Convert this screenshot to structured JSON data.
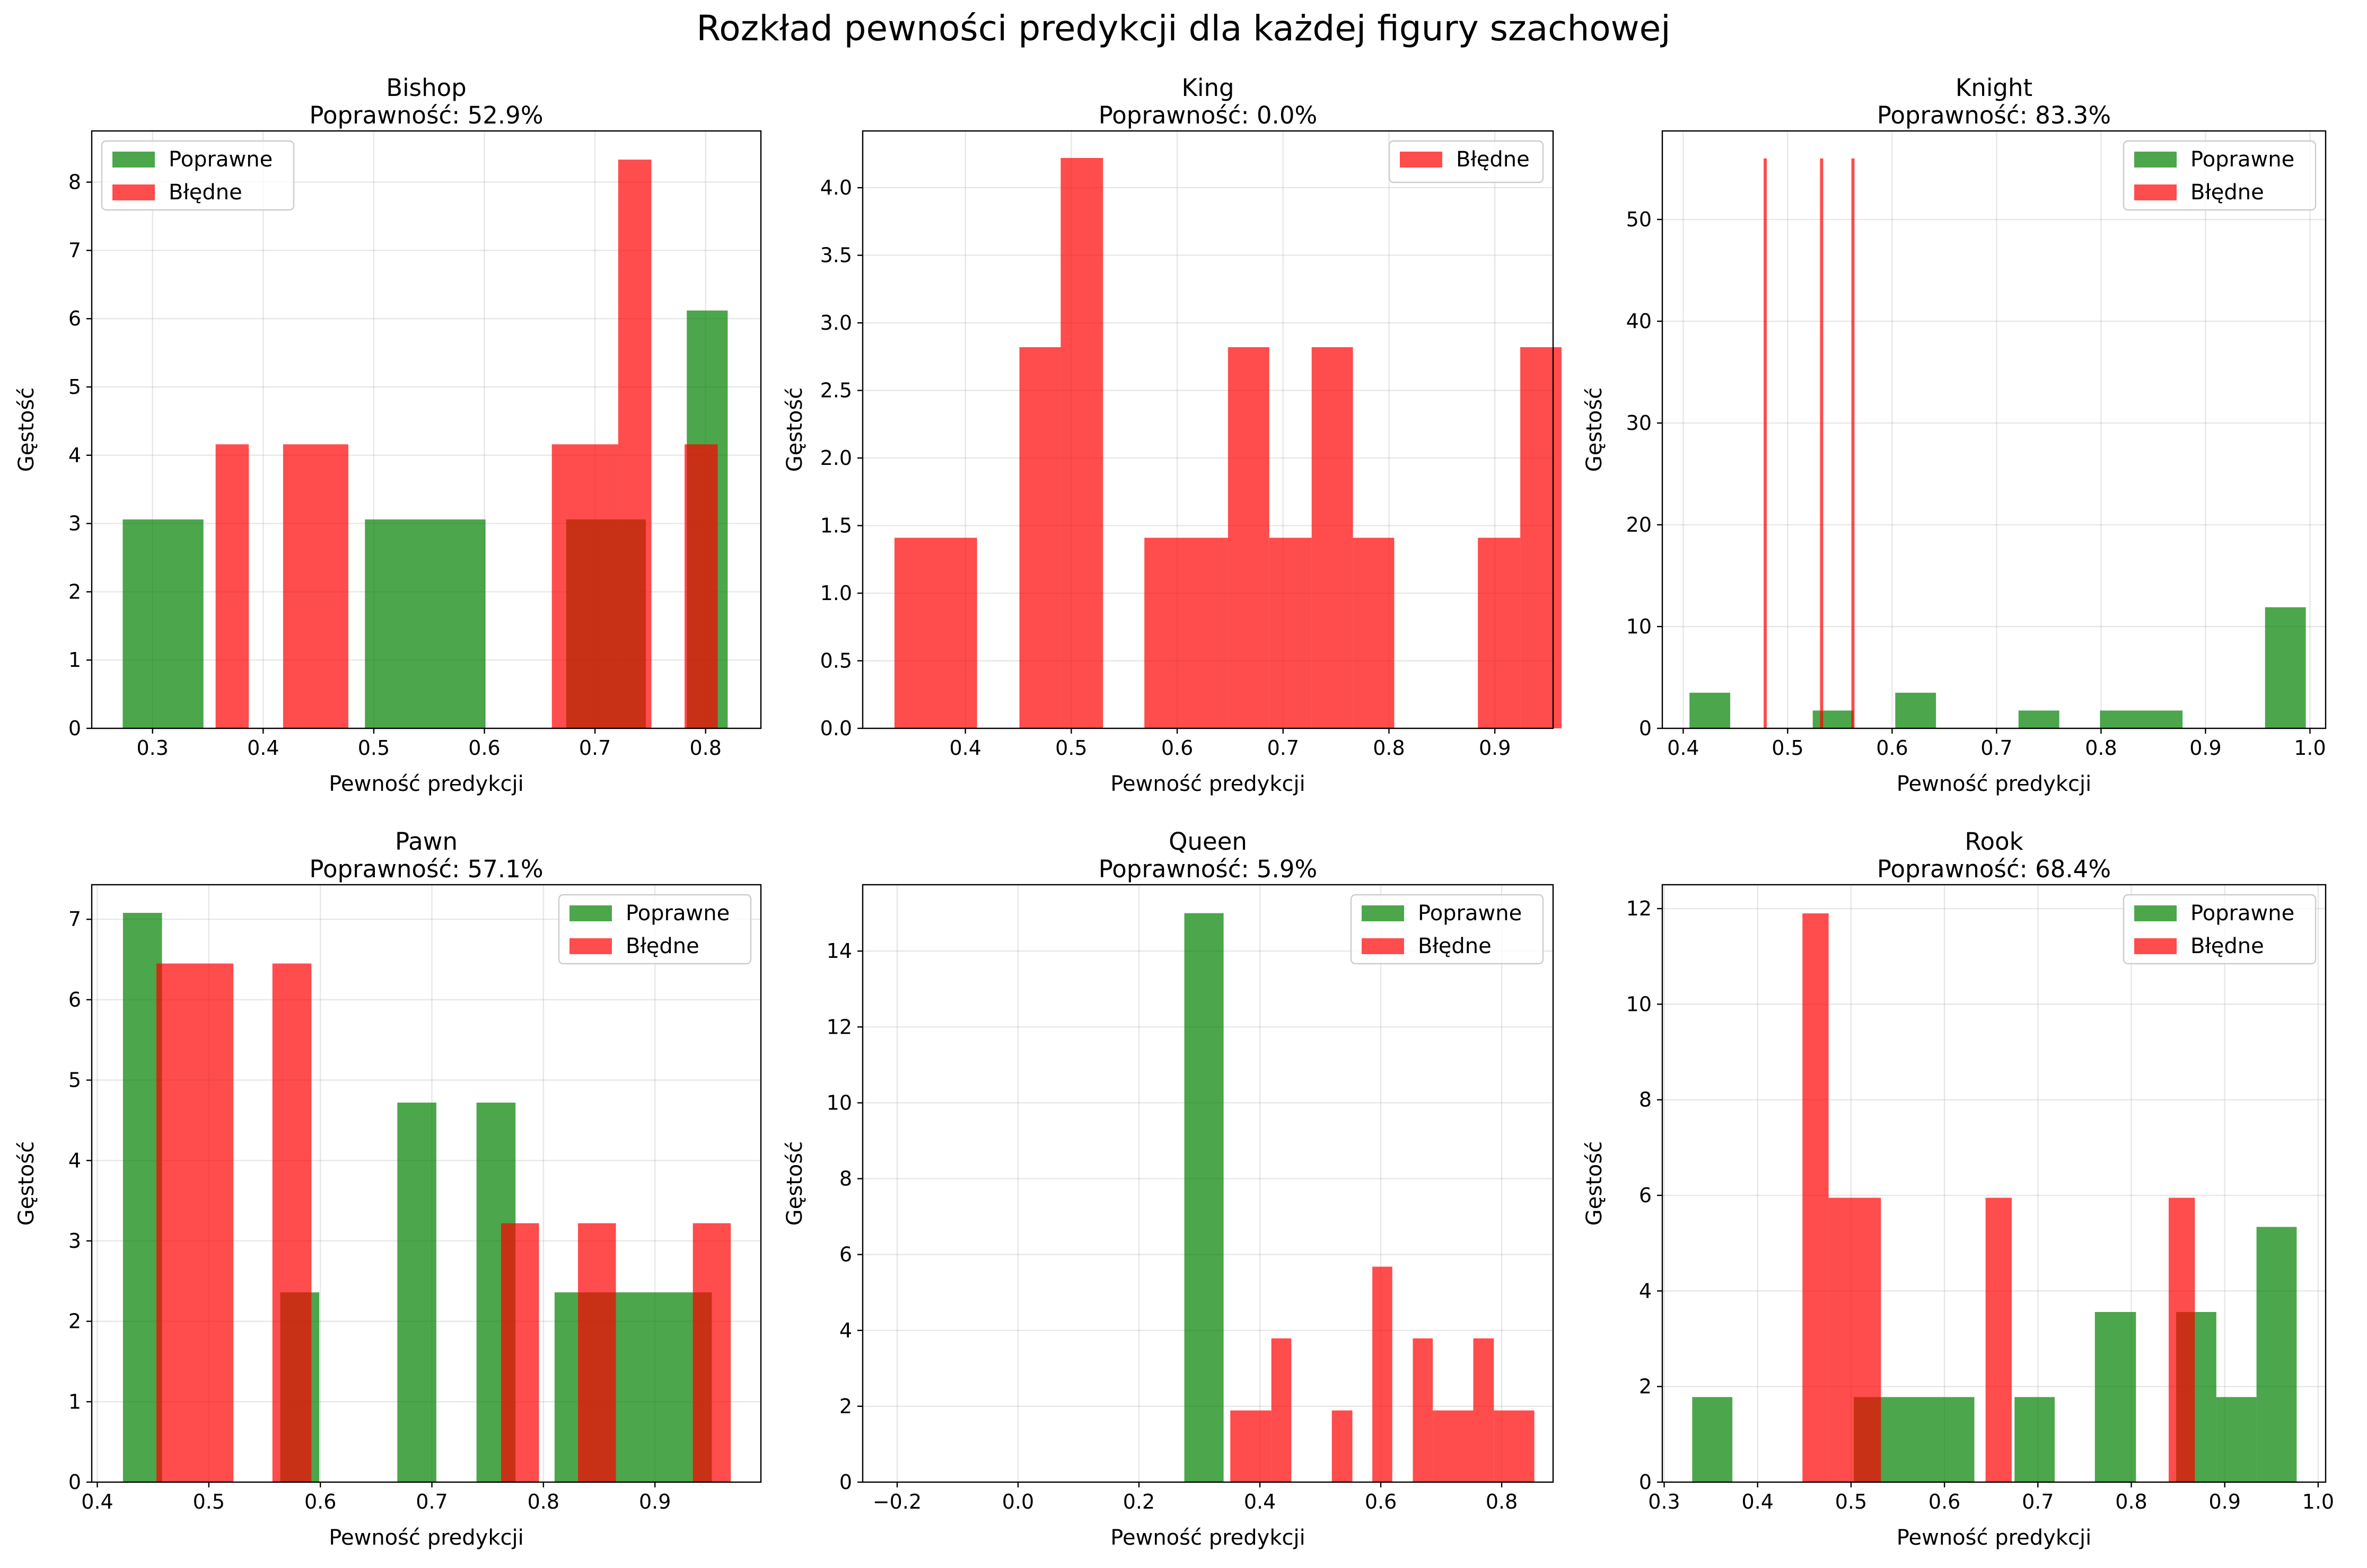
{
  "figure": {
    "title": "Rozkład pewności predykcji dla każdej figury szachowej",
    "colors": {
      "correct": "#008000",
      "wrong": "#ff0000",
      "grid": "#b0b0b0"
    }
  },
  "chart_data": [
    {
      "type": "bar",
      "title": "Bishop",
      "subtitle": "Poprawność: 52.9%",
      "xlabel": "Pewność predykcji",
      "ylabel": "Gęstość",
      "xlim": [
        0.245,
        0.85
      ],
      "ylim": [
        0,
        8.75
      ],
      "xticks": [
        0.3,
        0.4,
        0.5,
        0.6,
        0.7,
        0.8
      ],
      "xtick_labels": [
        "0.3",
        "0.4",
        "0.5",
        "0.6",
        "0.7",
        "0.8"
      ],
      "yticks": [
        0,
        1,
        2,
        3,
        4,
        5,
        6,
        7,
        8
      ],
      "ytick_labels": [
        "0",
        "1",
        "2",
        "3",
        "4",
        "5",
        "6",
        "7",
        "8"
      ],
      "legend": {
        "position": "top-left",
        "entries": [
          "Poprawne",
          "Błędne"
        ]
      },
      "series": [
        {
          "name": "Poprawne",
          "color": "#008000",
          "bins": [
            [
              0.273,
              0.346,
              3.06
            ],
            [
              0.492,
              0.601,
              3.06
            ],
            [
              0.674,
              0.746,
              3.06
            ],
            [
              0.783,
              0.82,
              6.12
            ]
          ]
        },
        {
          "name": "Błędne",
          "color": "#ff0000",
          "bins": [
            [
              0.357,
              0.387,
              4.16
            ],
            [
              0.418,
              0.477,
              4.16
            ],
            [
              0.661,
              0.721,
              4.16
            ],
            [
              0.721,
              0.751,
              8.33
            ],
            [
              0.781,
              0.811,
              4.16
            ]
          ]
        }
      ]
    },
    {
      "type": "bar",
      "title": "King",
      "subtitle": "Poprawność: 0.0%",
      "xlabel": "Pewność predykcji",
      "ylabel": "Gęstość",
      "xlim": [
        0.303,
        0.955
      ],
      "ylim": [
        0,
        4.42
      ],
      "xticks": [
        0.4,
        0.5,
        0.6,
        0.7,
        0.8,
        0.9
      ],
      "xtick_labels": [
        "0.4",
        "0.5",
        "0.6",
        "0.7",
        "0.8",
        "0.9"
      ],
      "yticks": [
        0,
        0.5,
        1,
        1.5,
        2,
        2.5,
        3,
        3.5,
        4
      ],
      "ytick_labels": [
        "0.0",
        "0.5",
        "1.0",
        "1.5",
        "2.0",
        "2.5",
        "3.0",
        "3.5",
        "4.0"
      ],
      "legend": {
        "position": "top-right",
        "entries": [
          "Błędne"
        ]
      },
      "series": [
        {
          "name": "Błędne",
          "color": "#ff0000",
          "bins": [
            [
              0.333,
              0.411,
              1.41
            ],
            [
              0.451,
              0.49,
              2.82
            ],
            [
              0.49,
              0.53,
              4.22
            ],
            [
              0.569,
              0.648,
              1.41
            ],
            [
              0.648,
              0.687,
              2.82
            ],
            [
              0.687,
              0.727,
              1.41
            ],
            [
              0.727,
              0.766,
              2.82
            ],
            [
              0.766,
              0.805,
              1.41
            ],
            [
              0.884,
              0.924,
              1.41
            ],
            [
              0.924,
              0.963,
              2.82
            ]
          ]
        }
      ]
    },
    {
      "type": "bar",
      "title": "Knight",
      "subtitle": "Poprawność: 83.3%",
      "xlabel": "Pewność predykcji",
      "ylabel": "Gęstość",
      "xlim": [
        0.38,
        1.015
      ],
      "ylim": [
        0,
        58.7
      ],
      "xticks": [
        0.4,
        0.5,
        0.6,
        0.7,
        0.8,
        0.9,
        1.0
      ],
      "xtick_labels": [
        "0.4",
        "0.5",
        "0.6",
        "0.7",
        "0.8",
        "0.9",
        "1.0"
      ],
      "yticks": [
        0,
        10,
        20,
        30,
        40,
        50
      ],
      "ytick_labels": [
        "0",
        "10",
        "20",
        "30",
        "40",
        "50"
      ],
      "legend": {
        "position": "top-right",
        "entries": [
          "Poprawne",
          "Błędne"
        ]
      },
      "series": [
        {
          "name": "Poprawne",
          "color": "#008000",
          "bins": [
            [
              0.406,
              0.445,
              3.5
            ],
            [
              0.524,
              0.563,
              1.75
            ],
            [
              0.603,
              0.642,
              3.5
            ],
            [
              0.721,
              0.76,
              1.75
            ],
            [
              0.799,
              0.878,
              1.75
            ],
            [
              0.957,
              0.996,
              11.9
            ]
          ]
        },
        {
          "name": "Błędne",
          "color": "#ff0000",
          "bins": [
            [
              0.477,
              0.48,
              56
            ],
            [
              0.531,
              0.534,
              56
            ],
            [
              0.561,
              0.564,
              56
            ]
          ]
        }
      ]
    },
    {
      "type": "bar",
      "title": "Pawn",
      "subtitle": "Poprawność: 57.1%",
      "xlabel": "Pewność predykcji",
      "ylabel": "Gęstość",
      "xlim": [
        0.395,
        0.995
      ],
      "ylim": [
        0,
        7.43
      ],
      "xticks": [
        0.4,
        0.5,
        0.6,
        0.7,
        0.8,
        0.9
      ],
      "xtick_labels": [
        "0.4",
        "0.5",
        "0.6",
        "0.7",
        "0.8",
        "0.9"
      ],
      "yticks": [
        0,
        1,
        2,
        3,
        4,
        5,
        6,
        7
      ],
      "ytick_labels": [
        "0",
        "1",
        "2",
        "3",
        "4",
        "5",
        "6",
        "7"
      ],
      "legend": {
        "position": "top-right",
        "entries": [
          "Poprawne",
          "Błędne"
        ]
      },
      "series": [
        {
          "name": "Poprawne",
          "color": "#008000",
          "bins": [
            [
              0.423,
              0.458,
              7.08
            ],
            [
              0.564,
              0.599,
              2.36
            ],
            [
              0.669,
              0.704,
              4.72
            ],
            [
              0.74,
              0.775,
              4.72
            ],
            [
              0.81,
              0.951,
              2.36
            ]
          ]
        },
        {
          "name": "Błędne",
          "color": "#ff0000",
          "bins": [
            [
              0.453,
              0.522,
              6.45
            ],
            [
              0.557,
              0.592,
              6.45
            ],
            [
              0.762,
              0.796,
              3.22
            ],
            [
              0.831,
              0.865,
              3.22
            ],
            [
              0.934,
              0.968,
              3.22
            ]
          ]
        }
      ]
    },
    {
      "type": "bar",
      "title": "Queen",
      "subtitle": "Poprawność: 5.9%",
      "xlabel": "Pewność predykcji",
      "ylabel": "Gęstość",
      "xlim": [
        -0.257,
        0.885
      ],
      "ylim": [
        0,
        15.75
      ],
      "xticks": [
        -0.2,
        0.0,
        0.2,
        0.4,
        0.6,
        0.8
      ],
      "xtick_labels": [
        "−0.2",
        "0.0",
        "0.2",
        "0.4",
        "0.6",
        "0.8"
      ],
      "yticks": [
        0,
        2,
        4,
        6,
        8,
        10,
        12,
        14
      ],
      "ytick_labels": [
        "0",
        "2",
        "4",
        "6",
        "8",
        "10",
        "12",
        "14"
      ],
      "legend": {
        "position": "top-right",
        "entries": [
          "Poprawne",
          "Błędne"
        ]
      },
      "series": [
        {
          "name": "Poprawne",
          "color": "#008000",
          "bins": [
            [
              0.275,
              0.34,
              15.0
            ]
          ]
        },
        {
          "name": "Błędne",
          "color": "#ff0000",
          "bins": [
            [
              0.351,
              0.419,
              1.89
            ],
            [
              0.419,
              0.452,
              3.79
            ],
            [
              0.519,
              0.553,
              1.89
            ],
            [
              0.586,
              0.619,
              5.68
            ],
            [
              0.653,
              0.686,
              3.79
            ],
            [
              0.686,
              0.753,
              1.89
            ],
            [
              0.753,
              0.787,
              3.79
            ],
            [
              0.787,
              0.854,
              1.89
            ]
          ]
        }
      ]
    },
    {
      "type": "bar",
      "title": "Rook",
      "subtitle": "Poprawność: 68.4%",
      "xlabel": "Pewność predykcji",
      "ylabel": "Gęstość",
      "xlim": [
        0.298,
        1.008
      ],
      "ylim": [
        0,
        12.5
      ],
      "xticks": [
        0.3,
        0.4,
        0.5,
        0.6,
        0.7,
        0.8,
        0.9,
        1.0
      ],
      "xtick_labels": [
        "0.3",
        "0.4",
        "0.5",
        "0.6",
        "0.7",
        "0.8",
        "0.9",
        "1.0"
      ],
      "yticks": [
        0,
        2,
        4,
        6,
        8,
        10,
        12
      ],
      "ytick_labels": [
        "0",
        "2",
        "4",
        "6",
        "8",
        "10",
        "12"
      ],
      "legend": {
        "position": "top-right",
        "entries": [
          "Poprawne",
          "Błędne"
        ]
      },
      "series": [
        {
          "name": "Poprawne",
          "color": "#008000",
          "bins": [
            [
              0.33,
              0.373,
              1.78
            ],
            [
              0.503,
              0.546,
              1.78
            ],
            [
              0.546,
              0.632,
              1.78
            ],
            [
              0.675,
              0.718,
              1.78
            ],
            [
              0.761,
              0.805,
              3.56
            ],
            [
              0.848,
              0.891,
              3.56
            ],
            [
              0.891,
              0.934,
              1.78
            ],
            [
              0.934,
              0.977,
              5.34
            ]
          ]
        },
        {
          "name": "Błędne",
          "color": "#ff0000",
          "bins": [
            [
              0.448,
              0.476,
              11.9
            ],
            [
              0.476,
              0.532,
              5.95
            ],
            [
              0.644,
              0.672,
              5.95
            ],
            [
              0.84,
              0.868,
              5.95
            ]
          ]
        }
      ]
    }
  ]
}
